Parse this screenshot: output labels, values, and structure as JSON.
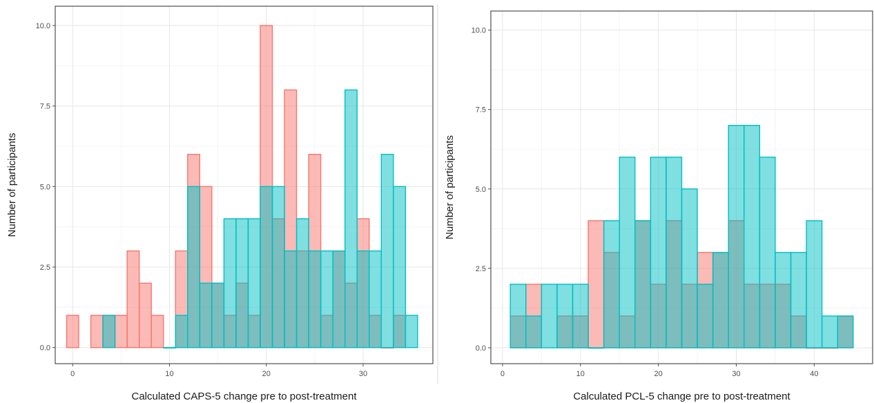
{
  "colors": {
    "group_a": "#F8766D",
    "group_b": "#00BFC4"
  },
  "chart_data": [
    {
      "type": "bar",
      "subtype": "histogram-overlap",
      "xlabel": "Calculated CAPS-5 change pre to post-treatment",
      "ylabel": "Number of participants",
      "xlim": [
        -1.8,
        37.2
      ],
      "ylim": [
        -0.5,
        10.6
      ],
      "xticks": [
        0,
        10,
        20,
        30
      ],
      "yticks": [
        0.0,
        2.5,
        5.0,
        7.5,
        10.0
      ],
      "ytick_labels": [
        "0.0",
        "2.5",
        "5.0",
        "7.5",
        "10.0"
      ],
      "bin_width": 1.25,
      "series": [
        {
          "name": "",
          "color": "#F8766D",
          "x": [
            0,
            2.5,
            3.75,
            5,
            6.25,
            7.5,
            8.75,
            11.25,
            12.5,
            13.75,
            15,
            16.25,
            17.5,
            18.75,
            20,
            21.25,
            22.5,
            23.75,
            25,
            26.25,
            27.5,
            28.75,
            30,
            31.25,
            32.5,
            33.75
          ],
          "values": [
            1,
            1,
            1,
            1,
            3,
            2,
            1,
            3,
            6,
            5,
            2,
            1,
            2,
            1,
            10,
            4,
            8,
            3,
            6,
            1,
            3,
            2,
            4,
            1,
            0,
            1
          ]
        },
        {
          "name": "",
          "color": "#00BFC4",
          "x": [
            3.75,
            10,
            11.25,
            12.5,
            13.75,
            15,
            16.25,
            17.5,
            18.75,
            20,
            21.25,
            22.5,
            23.75,
            25,
            26.25,
            27.5,
            28.75,
            30,
            31.25,
            32.5,
            33.75,
            35
          ],
          "values": [
            1,
            0,
            1,
            5,
            2,
            2,
            4,
            4,
            4,
            5,
            5,
            3,
            4,
            3,
            3,
            3,
            8,
            3,
            3,
            6,
            5,
            1
          ]
        }
      ]
    },
    {
      "type": "bar",
      "subtype": "histogram-overlap",
      "xlabel": "Calculated PCL-5 change pre to post-treatment",
      "ylabel": "Number of participants",
      "xlim": [
        -1.5,
        47.5
      ],
      "ylim": [
        -0.5,
        10.6
      ],
      "xticks": [
        0,
        10,
        20,
        30,
        40
      ],
      "yticks": [
        0.0,
        2.5,
        5.0,
        7.5,
        10.0
      ],
      "ytick_labels": [
        "0.0",
        "2.5",
        "5.0",
        "7.5",
        "10.0"
      ],
      "bin_width": 2,
      "series": [
        {
          "name": "",
          "color": "#F8766D",
          "x": [
            2,
            4,
            8,
            10,
            12,
            14,
            16,
            18,
            20,
            22,
            24,
            26,
            28,
            30,
            32,
            34,
            36,
            38,
            40,
            42,
            44
          ],
          "values": [
            1,
            2,
            1,
            1,
            4,
            3,
            1,
            4,
            2,
            4,
            2,
            3,
            3,
            4,
            2,
            2,
            2,
            1,
            0,
            0,
            1
          ]
        },
        {
          "name": "",
          "color": "#00BFC4",
          "x": [
            2,
            4,
            6,
            8,
            10,
            12,
            14,
            16,
            18,
            20,
            22,
            24,
            26,
            28,
            30,
            32,
            34,
            36,
            38,
            40,
            42,
            44
          ],
          "values": [
            2,
            1,
            2,
            2,
            2,
            0,
            4,
            6,
            4,
            6,
            6,
            5,
            2,
            3,
            7,
            7,
            6,
            3,
            3,
            4,
            1,
            1
          ]
        }
      ]
    }
  ]
}
